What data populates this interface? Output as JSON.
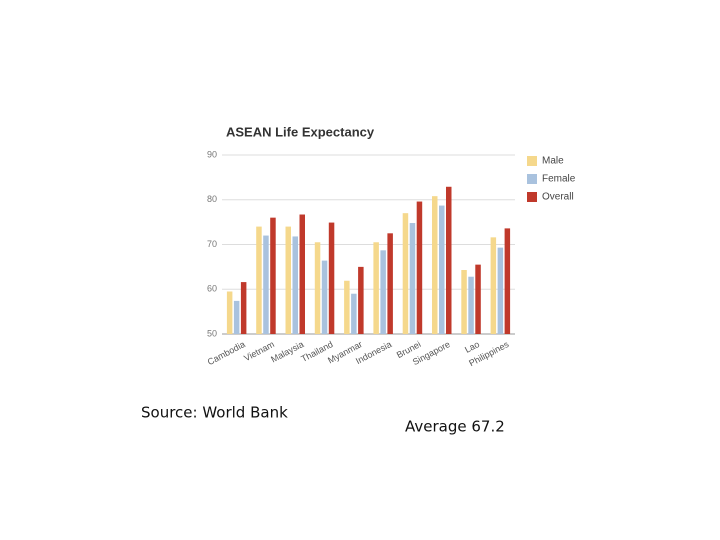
{
  "chart_data": {
    "type": "bar",
    "title": "ASEAN Life Expectancy",
    "categories": [
      "Cambodia",
      "Vietnam",
      "Malaysia",
      "Thailand",
      "Myanmar",
      "Indonesia",
      "Brunei",
      "Singapore",
      "Lao",
      "Philippines"
    ],
    "series": [
      {
        "name": "Male",
        "color": "#f5d88c",
        "values": [
          59.5,
          74,
          74,
          70.5,
          61.9,
          70.5,
          77,
          80.8,
          64.3,
          71.6
        ]
      },
      {
        "name": "Female",
        "color": "#a9c2de",
        "values": [
          57.4,
          72,
          71.8,
          66.4,
          59,
          68.7,
          74.8,
          78.7,
          62.8,
          69.3
        ]
      },
      {
        "name": "Overall",
        "color": "#c0392b",
        "values": [
          61.6,
          76,
          76.7,
          74.9,
          65,
          72.5,
          79.6,
          82.9,
          65.5,
          73.6
        ]
      }
    ],
    "ylim": [
      50,
      90
    ],
    "yticks": [
      50,
      60,
      70,
      80,
      90
    ],
    "grid": true,
    "legend": "right"
  },
  "source": "Source: World Bank",
  "average": "Average 67.2"
}
